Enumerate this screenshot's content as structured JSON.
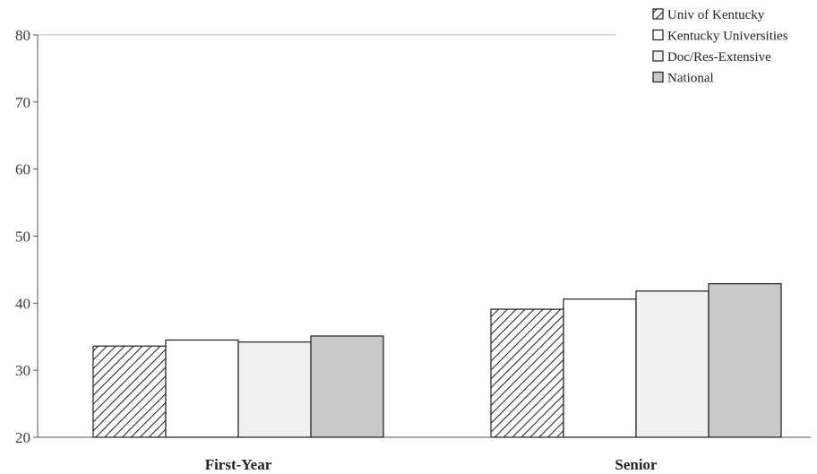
{
  "chart_data": {
    "type": "bar",
    "title": "",
    "xlabel": "",
    "ylabel": "",
    "categories": [
      "First-Year",
      "Senior"
    ],
    "ylim": [
      20,
      80
    ],
    "yticks": [
      20,
      30,
      40,
      50,
      60,
      70,
      80
    ],
    "grid": false,
    "top_reference_line": true,
    "legend_position": "top-right",
    "series": [
      {
        "name": "Univ of Kentucky",
        "values": [
          33.6,
          39.1
        ],
        "fill": "#ffffff",
        "pattern": "diagonal-hatch",
        "hatch_color": "#2a2a2a"
      },
      {
        "name": "Kentucky Universities",
        "values": [
          34.5,
          40.6
        ],
        "fill": "#ffffff"
      },
      {
        "name": "Doc/Res-Extensive",
        "values": [
          34.2,
          41.8
        ],
        "fill": "#f0f0f0"
      },
      {
        "name": "National",
        "values": [
          35.1,
          42.9
        ],
        "fill": "#c9c9c9"
      }
    ]
  }
}
